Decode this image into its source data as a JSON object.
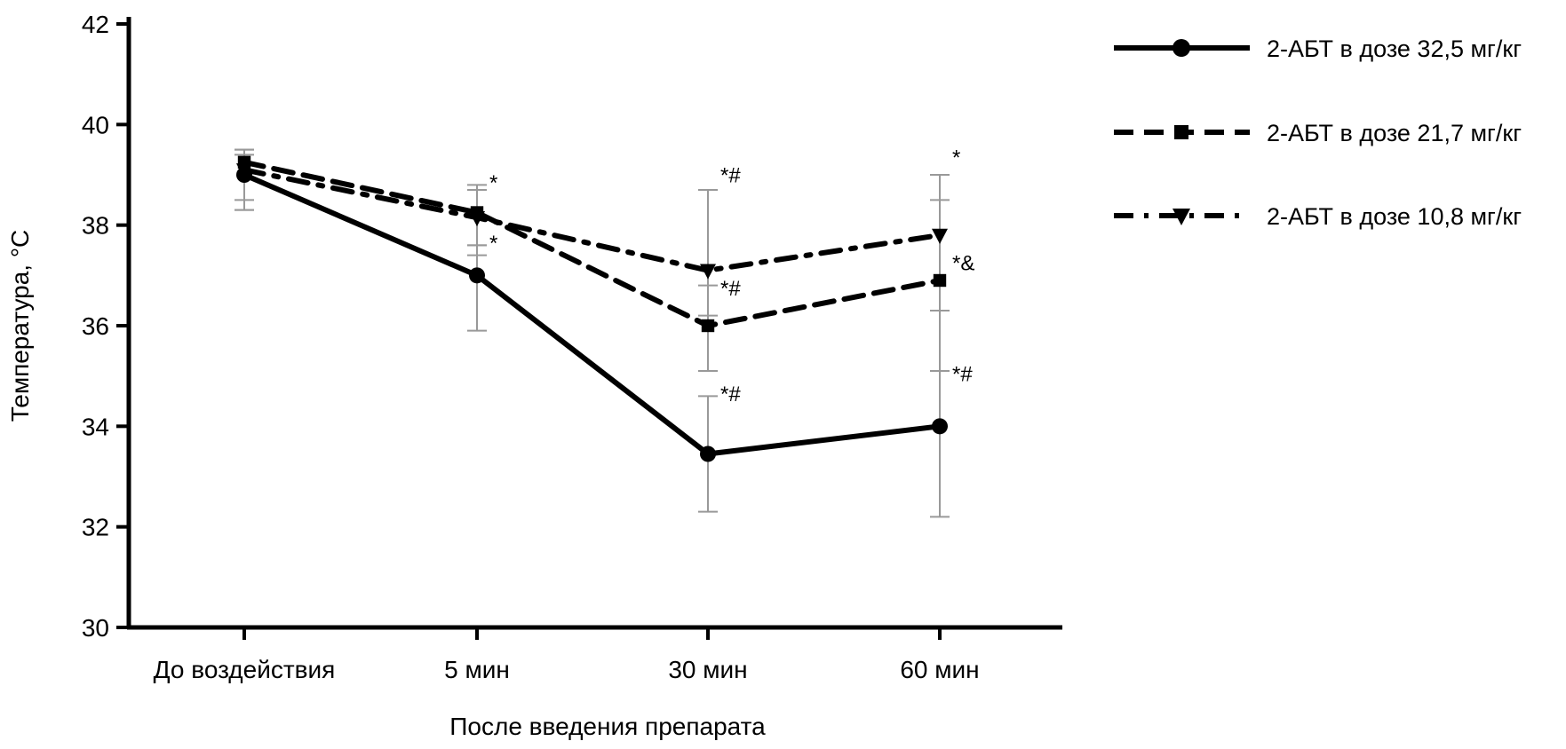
{
  "chart_data": {
    "type": "line",
    "title": "",
    "xlabel": "После введения препарата",
    "ylabel": "Температура, °C",
    "ylim": [
      30,
      42
    ],
    "yticks": [
      30,
      32,
      34,
      36,
      38,
      40,
      42
    ],
    "categories": [
      "До воздействия",
      "5 мин",
      "30 мин",
      "60 мин"
    ],
    "legend_position": "top-right",
    "series": [
      {
        "name": "2-АБТ в дозе 32,5 мг/кг",
        "style": "solid",
        "marker": "circle",
        "values": [
          39.0,
          37.0,
          33.45,
          34.0
        ],
        "err_low": [
          38.5,
          35.9,
          32.3,
          32.2
        ],
        "err_high": [
          39.5,
          37.6,
          34.6,
          36.3
        ]
      },
      {
        "name": "2-АБТ в дозе 21,7 мг/кг",
        "style": "dashed",
        "marker": "square",
        "values": [
          39.25,
          38.25,
          36.0,
          36.9
        ],
        "err_low": [
          38.3,
          37.4,
          35.1,
          35.1
        ],
        "err_high": [
          39.5,
          38.8,
          36.8,
          38.5
        ]
      },
      {
        "name": "2-АБТ в дозе 10,8 мг/кг",
        "style": "dashdot",
        "marker": "triangle-down",
        "values": [
          39.1,
          38.15,
          37.1,
          37.8
        ],
        "err_low": [
          38.3,
          37.6,
          36.2,
          36.3
        ],
        "err_high": [
          39.4,
          38.7,
          38.7,
          39.0
        ]
      }
    ],
    "annotations": [
      {
        "category": 1,
        "y": 38.7,
        "text": "*"
      },
      {
        "category": 1,
        "y": 37.5,
        "text": "*"
      },
      {
        "category": 2,
        "y": 38.85,
        "text": "*#"
      },
      {
        "category": 2,
        "y": 36.6,
        "text": "*#"
      },
      {
        "category": 2,
        "y": 34.5,
        "text": "*#"
      },
      {
        "category": 3,
        "y": 39.2,
        "text": "*"
      },
      {
        "category": 3,
        "y": 37.1,
        "text": "*&"
      },
      {
        "category": 3,
        "y": 34.9,
        "text": "*#"
      }
    ]
  }
}
